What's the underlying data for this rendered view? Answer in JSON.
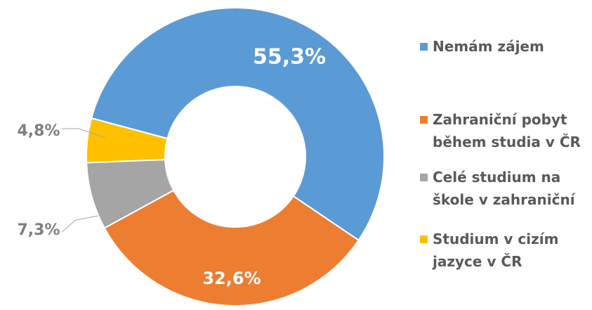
{
  "chart_data": {
    "type": "donut",
    "categories": [
      "Nemám zájem",
      "Zahraniční pobyt během studia v ČR",
      "Celé studium na škole v zahraniční",
      "Studium v cizím jazyce v ČR"
    ],
    "values": [
      55.3,
      32.6,
      7.3,
      4.8
    ],
    "value_labels": [
      "55,3%",
      "32,6%",
      "7,3%",
      "4,8%"
    ],
    "colors": [
      "#5b9bd5",
      "#ed7d31",
      "#a5a5a5",
      "#ffc000"
    ]
  }
}
